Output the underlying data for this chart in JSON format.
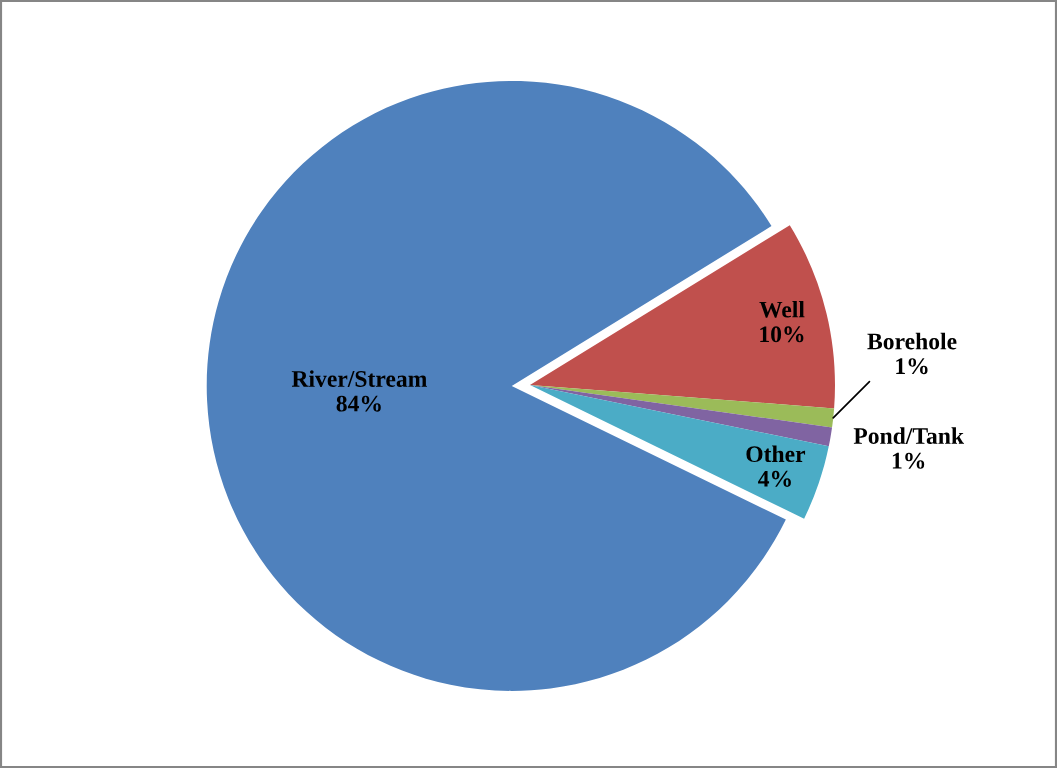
{
  "chart_data": {
    "type": "pie",
    "categories": [
      "River/Stream",
      "Well",
      "Borehole",
      "Pond/Tank",
      "Other"
    ],
    "values": [
      84,
      10,
      1,
      1,
      4
    ],
    "colors": [
      "#4f81bd",
      "#c0504d",
      "#9bbb59",
      "#8064a2",
      "#4bacc6"
    ],
    "value_labels": [
      "84%",
      "10%",
      "1%",
      "1%",
      "4%"
    ]
  }
}
